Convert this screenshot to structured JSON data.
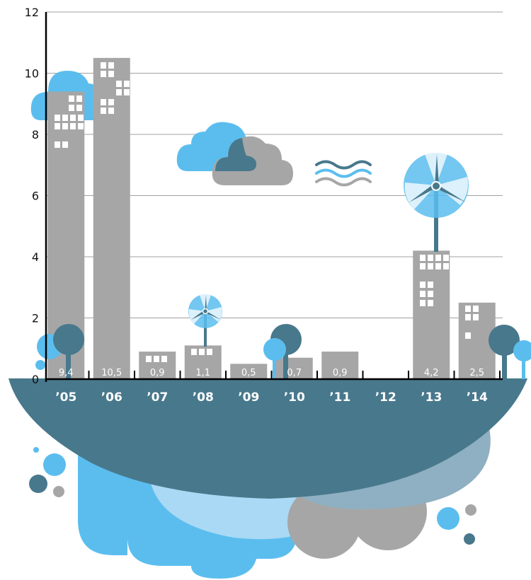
{
  "chart_data": {
    "type": "bar",
    "categories": [
      "’05",
      "’06",
      "’07",
      "’08",
      "’09",
      "’10",
      "’11",
      "’12",
      "’13",
      "’14"
    ],
    "values": [
      9.4,
      10.5,
      0.9,
      1.1,
      0.5,
      0.7,
      0.9,
      null,
      4.2,
      2.5
    ],
    "value_labels": [
      "9,4",
      "10,5",
      "0,9",
      "1,1",
      "0,5",
      "0,7",
      "0,9",
      "",
      "4,2",
      "2,5"
    ],
    "y_ticks": [
      "0",
      "2",
      "4",
      "6",
      "8",
      "10",
      "12"
    ],
    "ylim": [
      0,
      12
    ],
    "grid": true,
    "legend": "none"
  },
  "colors": {
    "bar": "#a6a6a6",
    "window": "#ffffff",
    "island": "#48788c",
    "island_light": "#8fb0c2",
    "cloud_blue": "#5bbdee",
    "cloud_pale": "#a9d9f4",
    "cloud_grey": "#a6a6a6",
    "grid": "#a0a0a0",
    "axis": "#000000",
    "tree_dark": "#48788c",
    "tree_light": "#5bbdee"
  },
  "decorations": {
    "icons": [
      "cloud-icon",
      "wind-waves-icon",
      "wind-turbine-icon",
      "tree-icon",
      "floating-island-icon"
    ]
  }
}
